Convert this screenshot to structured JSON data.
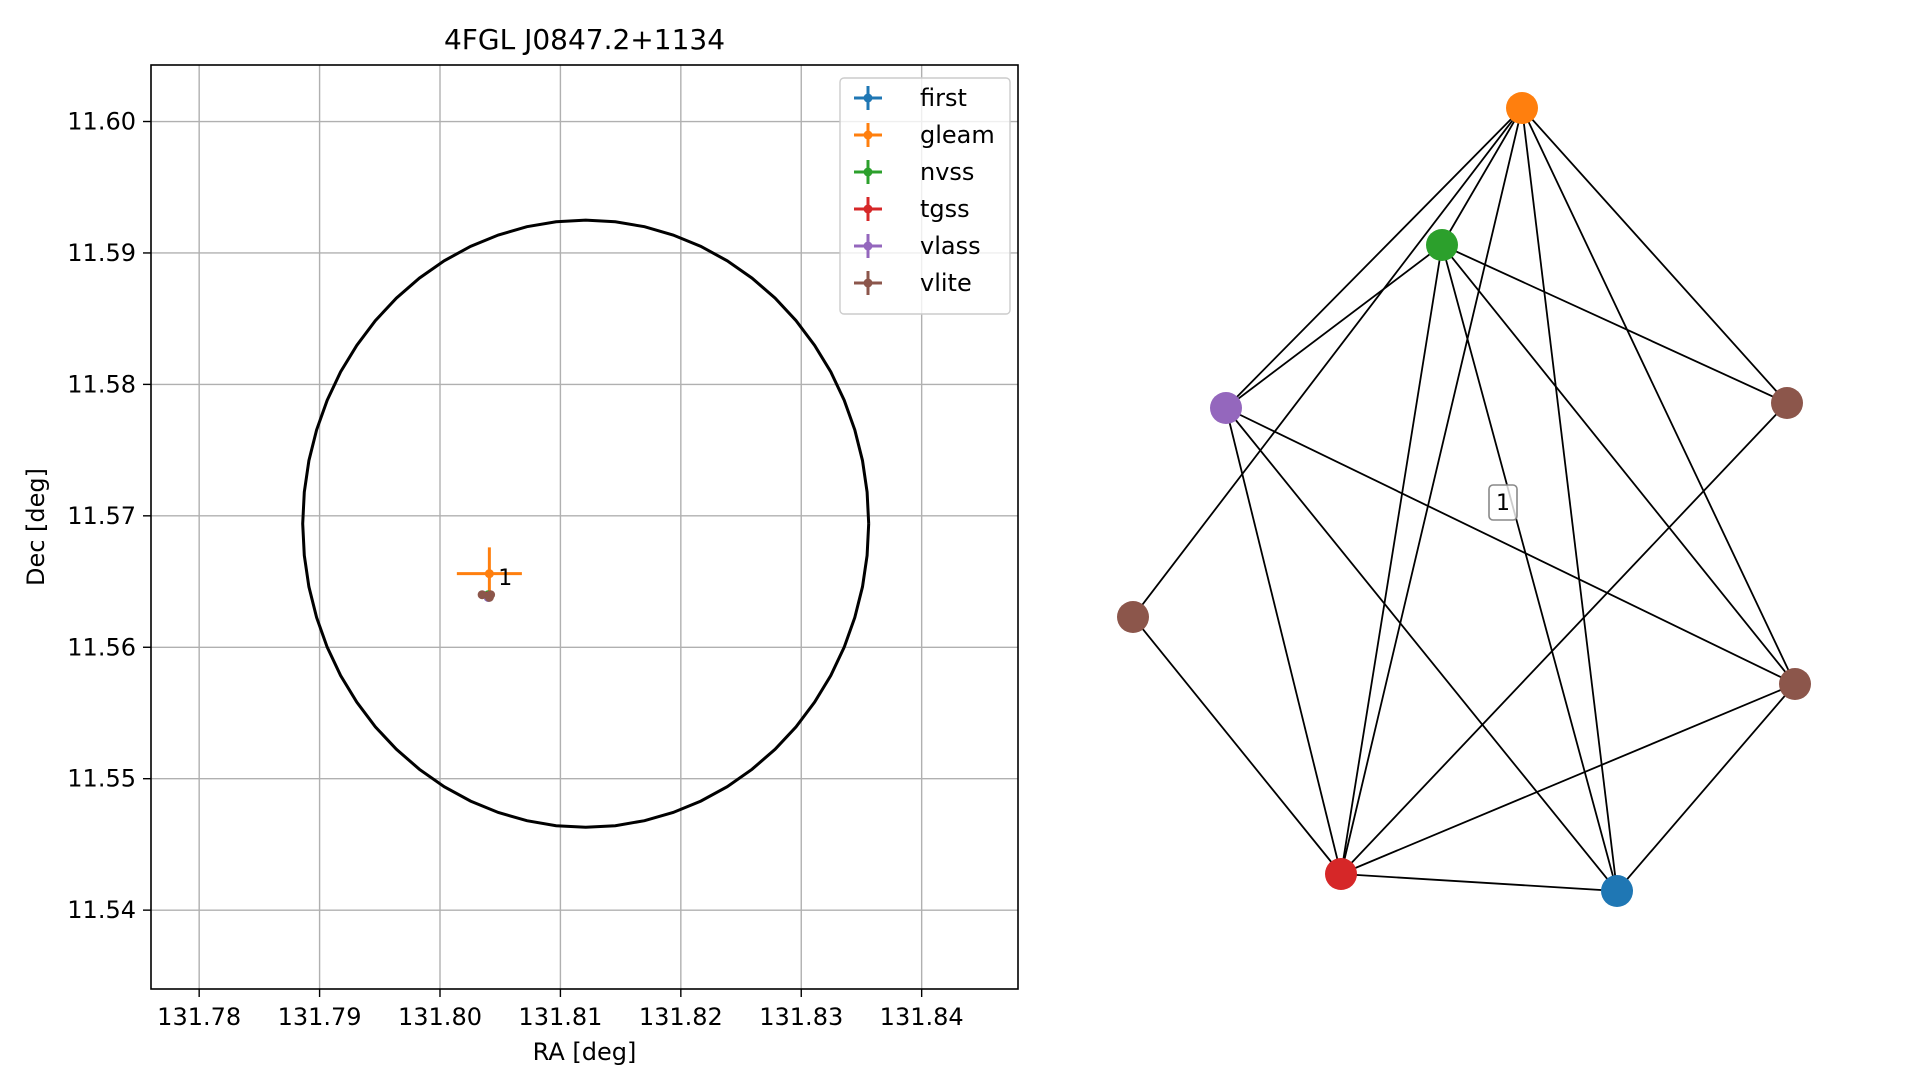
{
  "chart_data": [
    {
      "type": "scatter",
      "title": "4FGL J0847.2+1134",
      "xlabel": "RA [deg]",
      "ylabel": "Dec [deg]",
      "xlim": [
        131.776,
        131.848
      ],
      "ylim": [
        11.534,
        11.6043
      ],
      "xticks": [
        131.78,
        131.79,
        131.8,
        131.81,
        131.82,
        131.83,
        131.84
      ],
      "xtick_labels": [
        "131.78",
        "131.79",
        "131.80",
        "131.81",
        "131.82",
        "131.83",
        "131.84"
      ],
      "yticks": [
        11.54,
        11.55,
        11.56,
        11.57,
        11.58,
        11.59,
        11.6
      ],
      "ytick_labels": [
        "11.54",
        "11.55",
        "11.56",
        "11.57",
        "11.58",
        "11.59",
        "11.60"
      ],
      "grid": true,
      "legend_position": "top-right",
      "ellipse": {
        "center": [
          131.8121,
          11.5694
        ],
        "semi_axes": [
          0.0235,
          0.0231
        ],
        "color": "#000000"
      },
      "series": [
        {
          "name": "first",
          "color": "#1f77b4",
          "points": [
            {
              "x": 131.804,
              "y": 11.5638,
              "xerr": 0.0002,
              "yerr": 0.0002
            }
          ]
        },
        {
          "name": "gleam",
          "color": "#ff7f0e",
          "points": [
            {
              "x": 131.8041,
              "y": 11.5656,
              "xerr": 0.0027,
              "yerr": 0.002
            }
          ]
        },
        {
          "name": "nvss",
          "color": "#2ca02c",
          "points": [
            {
              "x": 131.804,
              "y": 11.564,
              "xerr": 0.0002,
              "yerr": 0.0002
            }
          ]
        },
        {
          "name": "tgss",
          "color": "#d62728",
          "points": [
            {
              "x": 131.804,
              "y": 11.5639,
              "xerr": 0.0003,
              "yerr": 0.0003
            }
          ]
        },
        {
          "name": "vlass",
          "color": "#9467bd",
          "points": [
            {
              "x": 131.804,
              "y": 11.5638,
              "xerr": 0.0001,
              "yerr": 0.0001
            }
          ]
        },
        {
          "name": "vlite",
          "color": "#8c564b",
          "points": [
            {
              "x": 131.8035,
              "y": 11.564,
              "xerr": 0.0001,
              "yerr": 0.0001
            },
            {
              "x": 131.8041,
              "y": 11.5638,
              "xerr": 0.0001,
              "yerr": 0.0001
            },
            {
              "x": 131.8042,
              "y": 11.564,
              "xerr": 0.0001,
              "yerr": 0.0001
            }
          ]
        }
      ],
      "annotations": [
        {
          "text": "1",
          "x": 131.8045,
          "y": 11.5655
        }
      ]
    },
    {
      "type": "network",
      "cluster_label": "1",
      "nodes": [
        {
          "id": "gleam",
          "color": "#ff7f0e"
        },
        {
          "id": "nvss",
          "color": "#2ca02c"
        },
        {
          "id": "vlass",
          "color": "#9467bd"
        },
        {
          "id": "vlite_1",
          "color": "#8c564b"
        },
        {
          "id": "vlite_2",
          "color": "#8c564b"
        },
        {
          "id": "vlite_3",
          "color": "#8c564b"
        },
        {
          "id": "tgss",
          "color": "#d62728"
        },
        {
          "id": "first",
          "color": "#1f77b4"
        }
      ],
      "edges": [
        [
          "gleam",
          "nvss"
        ],
        [
          "gleam",
          "vlass"
        ],
        [
          "gleam",
          "vlite_1"
        ],
        [
          "gleam",
          "vlite_2"
        ],
        [
          "gleam",
          "vlite_3"
        ],
        [
          "gleam",
          "tgss"
        ],
        [
          "gleam",
          "first"
        ],
        [
          "nvss",
          "vlass"
        ],
        [
          "nvss",
          "vlite_2"
        ],
        [
          "nvss",
          "vlite_3"
        ],
        [
          "nvss",
          "tgss"
        ],
        [
          "nvss",
          "first"
        ],
        [
          "vlass",
          "vlite_3"
        ],
        [
          "vlass",
          "tgss"
        ],
        [
          "vlass",
          "first"
        ],
        [
          "vlite_1",
          "tgss"
        ],
        [
          "vlite_2",
          "tgss"
        ],
        [
          "vlite_3",
          "tgss"
        ],
        [
          "vlite_3",
          "first"
        ],
        [
          "tgss",
          "first"
        ]
      ]
    }
  ]
}
